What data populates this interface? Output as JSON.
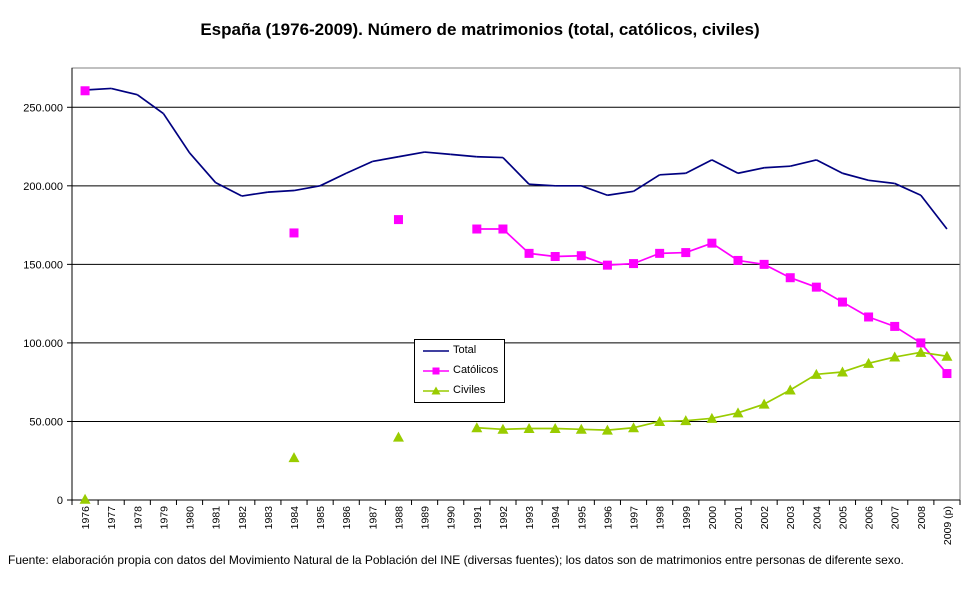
{
  "chart_data": {
    "type": "line",
    "title": "España (1976-2009). Número de matrimonios (total, católicos, civiles)",
    "xlabel": "",
    "ylabel": "",
    "ylim": [
      0,
      275000
    ],
    "yticks": [
      0,
      50000,
      100000,
      150000,
      200000,
      250000
    ],
    "ytick_labels": [
      "0",
      "50.000",
      "100.000",
      "150.000",
      "200.000",
      "250.000"
    ],
    "grid": true,
    "legend_position": "center",
    "categories": [
      "1976",
      "1977",
      "1978",
      "1979",
      "1980",
      "1981",
      "1982",
      "1983",
      "1984",
      "1985",
      "1986",
      "1987",
      "1988",
      "1989",
      "1990",
      "1991",
      "1992",
      "1993",
      "1994",
      "1995",
      "1996",
      "1997",
      "1998",
      "1999",
      "2000",
      "2001",
      "2002",
      "2003",
      "2004",
      "2005",
      "2006",
      "2007",
      "2008",
      "2009 (p)"
    ],
    "series": [
      {
        "name": "Total",
        "color": "#000080",
        "marker": "none",
        "values": [
          261000,
          262000,
          258000,
          246000,
          221000,
          202000,
          193500,
          196000,
          197000,
          200000,
          208000,
          215500,
          218500,
          221500,
          220000,
          218500,
          218000,
          201000,
          200000,
          200000,
          194000,
          196500,
          207000,
          208000,
          216500,
          208000,
          211500,
          212500,
          216500,
          208000,
          203500,
          201500,
          194000,
          172500
        ]
      },
      {
        "name": "Católicos",
        "color": "#ff00ff",
        "marker": "square",
        "values": [
          260500,
          null,
          null,
          null,
          null,
          null,
          null,
          null,
          170000,
          null,
          null,
          null,
          178500,
          null,
          null,
          172500,
          172500,
          157000,
          155000,
          155500,
          149500,
          150500,
          157000,
          157500,
          163500,
          152500,
          150000,
          141500,
          135500,
          126000,
          116500,
          110500,
          100000,
          80500
        ]
      },
      {
        "name": "Civiles",
        "color": "#99cc00",
        "marker": "triangle",
        "values": [
          500,
          null,
          null,
          null,
          null,
          null,
          null,
          null,
          27000,
          null,
          null,
          null,
          40000,
          null,
          null,
          46000,
          45000,
          45500,
          45500,
          45000,
          44500,
          46000,
          50000,
          50500,
          52000,
          55500,
          61000,
          70000,
          80000,
          81500,
          87000,
          91000,
          94000,
          91500
        ]
      }
    ]
  },
  "source_note": "Fuente: elaboración propia con datos del Movimiento Natural de la Población del INE (diversas fuentes); los datos son de matrimonios entre personas de diferente sexo."
}
